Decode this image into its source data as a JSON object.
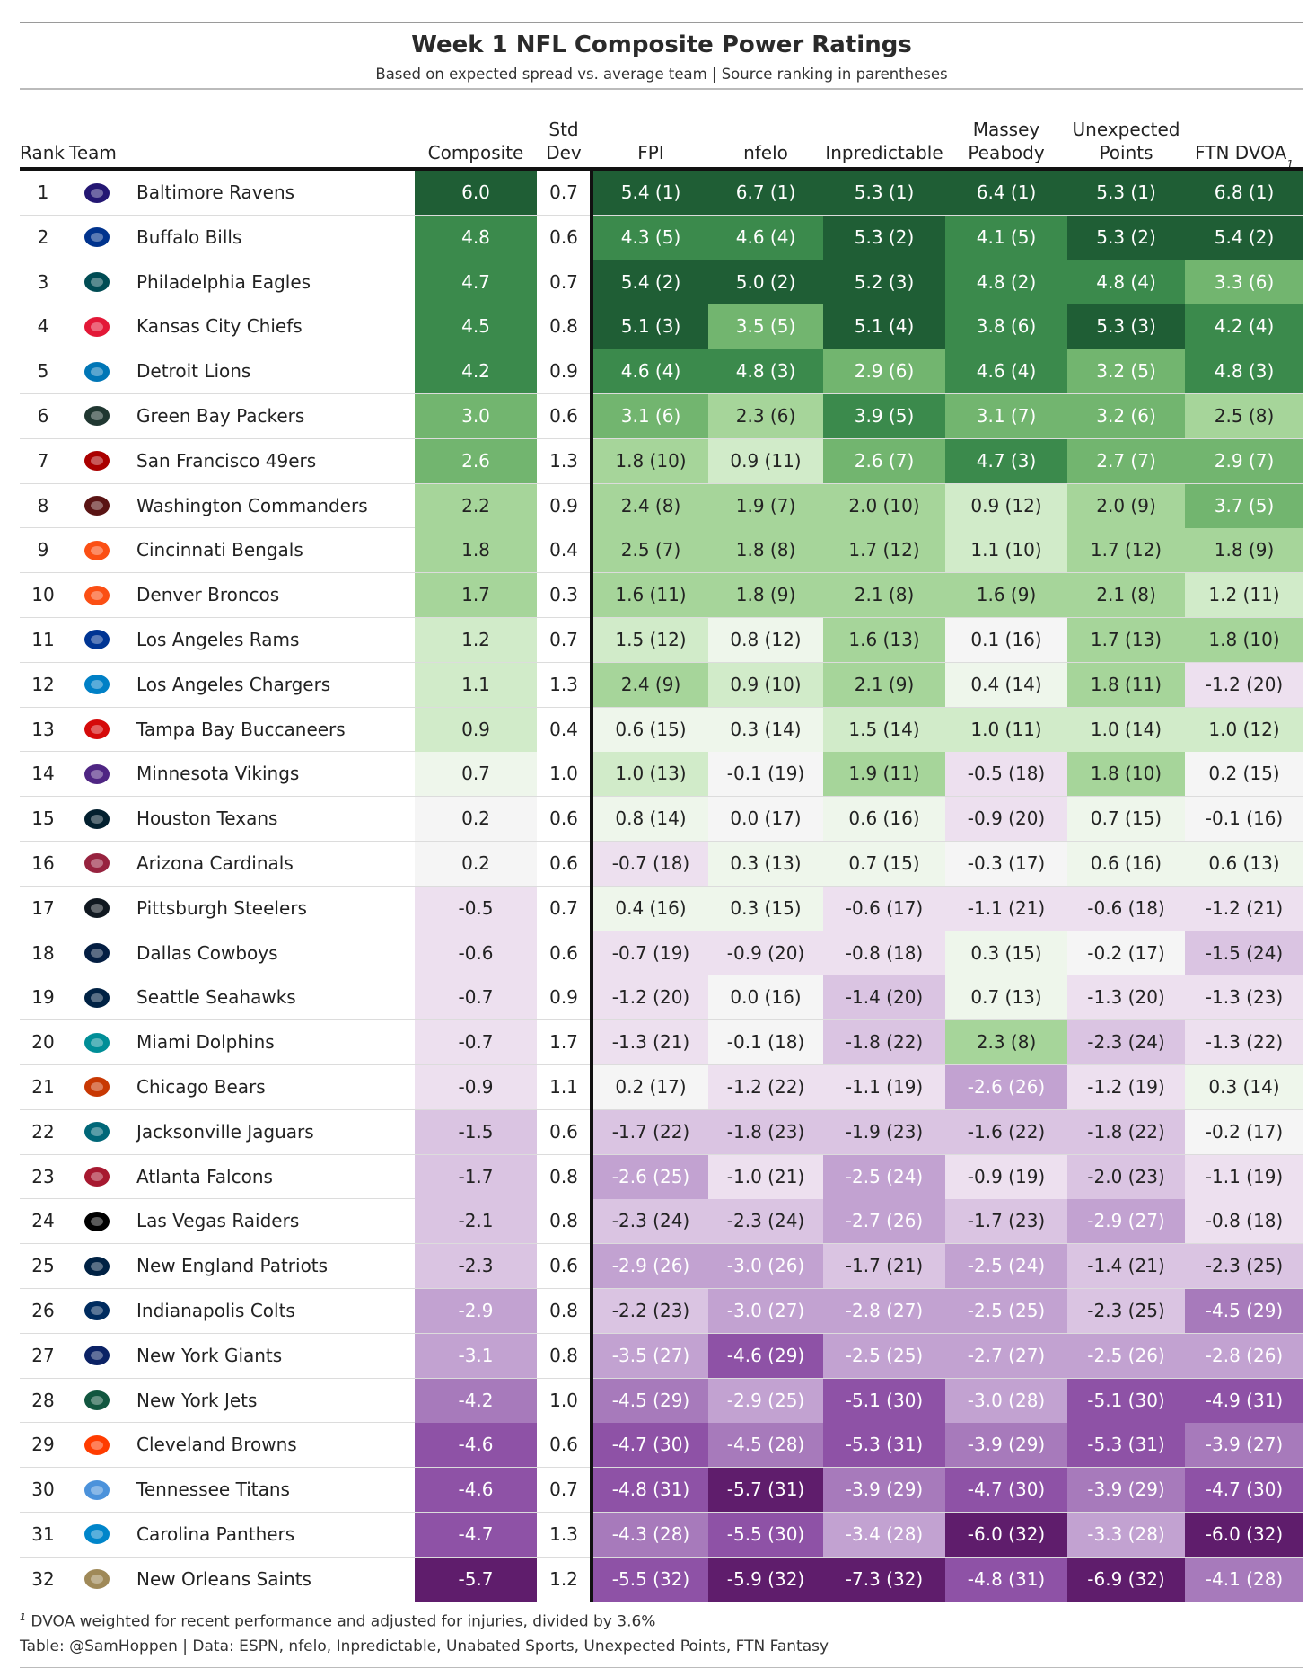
{
  "title": "Week 1 NFL Composite Power Ratings",
  "subtitle": "Based on expected spread vs. average team | Source ranking in parentheses",
  "columns": {
    "rank": "Rank",
    "team": "Team",
    "composite": "Composite",
    "std_dev": "Std Dev",
    "fpi": "FPI",
    "nfelo": "nfelo",
    "inpredictable": "Inpredictable",
    "massey_1": "Massey",
    "massey_2": "Peabody",
    "unexpected_1": "Unexpected",
    "unexpected_2": "Points",
    "ftn": "FTN DVOA",
    "ftn_mark": "1"
  },
  "colors": {
    "green_scale": [
      "#1f5e35",
      "#3b8a4c",
      "#72b56f",
      "#a6d59a",
      "#d1ebc9",
      "#eef6eb"
    ],
    "neutral": "#f5f5f5",
    "purple_scale": [
      "#ede0ef",
      "#dac4e2",
      "#c2a2d1",
      "#a77abb",
      "#8e52a6",
      "#5f1d6c"
    ]
  },
  "chart_data": {
    "type": "table",
    "rows": [
      {
        "rank": "1",
        "team": "Baltimore Ravens",
        "logo": "ravens-logo",
        "composite": "6.0",
        "sd": "0.7",
        "fpi": "5.4 (1)",
        "nfelo": "6.7 (1)",
        "inp": "5.3 (1)",
        "massey": "6.4 (1)",
        "unexp": "5.3 (1)",
        "ftn": "6.8 (1)",
        "composite_value": 6.0,
        "sources": [
          5.4,
          6.7,
          5.3,
          6.4,
          5.3,
          6.8
        ]
      },
      {
        "rank": "2",
        "team": "Buffalo Bills",
        "logo": "bills-logo",
        "composite": "4.8",
        "sd": "0.6",
        "fpi": "4.3 (5)",
        "nfelo": "4.6 (4)",
        "inp": "5.3 (2)",
        "massey": "4.1 (5)",
        "unexp": "5.3 (2)",
        "ftn": "5.4 (2)",
        "composite_value": 4.8,
        "sources": [
          4.3,
          4.6,
          5.3,
          4.1,
          5.3,
          5.4
        ]
      },
      {
        "rank": "3",
        "team": "Philadelphia Eagles",
        "logo": "eagles-logo",
        "composite": "4.7",
        "sd": "0.7",
        "fpi": "5.4 (2)",
        "nfelo": "5.0 (2)",
        "inp": "5.2 (3)",
        "massey": "4.8 (2)",
        "unexp": "4.8 (4)",
        "ftn": "3.3 (6)",
        "composite_value": 4.7,
        "sources": [
          5.4,
          5.0,
          5.2,
          4.8,
          4.8,
          3.3
        ]
      },
      {
        "rank": "4",
        "team": "Kansas City Chiefs",
        "logo": "chiefs-logo",
        "composite": "4.5",
        "sd": "0.8",
        "fpi": "5.1 (3)",
        "nfelo": "3.5 (5)",
        "inp": "5.1 (4)",
        "massey": "3.8 (6)",
        "unexp": "5.3 (3)",
        "ftn": "4.2 (4)",
        "composite_value": 4.5,
        "sources": [
          5.1,
          3.5,
          5.1,
          3.8,
          5.3,
          4.2
        ]
      },
      {
        "rank": "5",
        "team": "Detroit Lions",
        "logo": "lions-logo",
        "composite": "4.2",
        "sd": "0.9",
        "fpi": "4.6 (4)",
        "nfelo": "4.8 (3)",
        "inp": "2.9 (6)",
        "massey": "4.6 (4)",
        "unexp": "3.2 (5)",
        "ftn": "4.8 (3)",
        "composite_value": 4.2,
        "sources": [
          4.6,
          4.8,
          2.9,
          4.6,
          3.2,
          4.8
        ]
      },
      {
        "rank": "6",
        "team": "Green Bay Packers",
        "logo": "packers-logo",
        "composite": "3.0",
        "sd": "0.6",
        "fpi": "3.1 (6)",
        "nfelo": "2.3 (6)",
        "inp": "3.9 (5)",
        "massey": "3.1 (7)",
        "unexp": "3.2 (6)",
        "ftn": "2.5 (8)",
        "composite_value": 3.0,
        "sources": [
          3.1,
          2.3,
          3.9,
          3.1,
          3.2,
          2.5
        ]
      },
      {
        "rank": "7",
        "team": "San Francisco 49ers",
        "logo": "49ers-logo",
        "composite": "2.6",
        "sd": "1.3",
        "fpi": "1.8 (10)",
        "nfelo": "0.9 (11)",
        "inp": "2.6 (7)",
        "massey": "4.7 (3)",
        "unexp": "2.7 (7)",
        "ftn": "2.9 (7)",
        "composite_value": 2.6,
        "sources": [
          1.8,
          0.9,
          2.6,
          4.7,
          2.7,
          2.9
        ]
      },
      {
        "rank": "8",
        "team": "Washington Commanders",
        "logo": "commanders-logo",
        "composite": "2.2",
        "sd": "0.9",
        "fpi": "2.4 (8)",
        "nfelo": "1.9 (7)",
        "inp": "2.0 (10)",
        "massey": "0.9 (12)",
        "unexp": "2.0 (9)",
        "ftn": "3.7 (5)",
        "composite_value": 2.2,
        "sources": [
          2.4,
          1.9,
          2.0,
          0.9,
          2.0,
          3.7
        ]
      },
      {
        "rank": "9",
        "team": "Cincinnati Bengals",
        "logo": "bengals-logo",
        "composite": "1.8",
        "sd": "0.4",
        "fpi": "2.5 (7)",
        "nfelo": "1.8 (8)",
        "inp": "1.7 (12)",
        "massey": "1.1 (10)",
        "unexp": "1.7 (12)",
        "ftn": "1.8 (9)",
        "composite_value": 1.8,
        "sources": [
          2.5,
          1.8,
          1.7,
          1.1,
          1.7,
          1.8
        ]
      },
      {
        "rank": "10",
        "team": "Denver Broncos",
        "logo": "broncos-logo",
        "composite": "1.7",
        "sd": "0.3",
        "fpi": "1.6 (11)",
        "nfelo": "1.8 (9)",
        "inp": "2.1 (8)",
        "massey": "1.6 (9)",
        "unexp": "2.1 (8)",
        "ftn": "1.2 (11)",
        "composite_value": 1.7,
        "sources": [
          1.6,
          1.8,
          2.1,
          1.6,
          2.1,
          1.2
        ]
      },
      {
        "rank": "11",
        "team": "Los Angeles Rams",
        "logo": "rams-logo",
        "composite": "1.2",
        "sd": "0.7",
        "fpi": "1.5 (12)",
        "nfelo": "0.8 (12)",
        "inp": "1.6 (13)",
        "massey": "0.1 (16)",
        "unexp": "1.7 (13)",
        "ftn": "1.8 (10)",
        "composite_value": 1.2,
        "sources": [
          1.5,
          0.8,
          1.6,
          0.1,
          1.7,
          1.8
        ]
      },
      {
        "rank": "12",
        "team": "Los Angeles Chargers",
        "logo": "chargers-logo",
        "composite": "1.1",
        "sd": "1.3",
        "fpi": "2.4 (9)",
        "nfelo": "0.9 (10)",
        "inp": "2.1 (9)",
        "massey": "0.4 (14)",
        "unexp": "1.8 (11)",
        "ftn": "-1.2 (20)",
        "composite_value": 1.1,
        "sources": [
          2.4,
          0.9,
          2.1,
          0.4,
          1.8,
          -1.2
        ]
      },
      {
        "rank": "13",
        "team": "Tampa Bay Buccaneers",
        "logo": "buccaneers-logo",
        "composite": "0.9",
        "sd": "0.4",
        "fpi": "0.6 (15)",
        "nfelo": "0.3 (14)",
        "inp": "1.5 (14)",
        "massey": "1.0 (11)",
        "unexp": "1.0 (14)",
        "ftn": "1.0 (12)",
        "composite_value": 0.9,
        "sources": [
          0.6,
          0.3,
          1.5,
          1.0,
          1.0,
          1.0
        ]
      },
      {
        "rank": "14",
        "team": "Minnesota Vikings",
        "logo": "vikings-logo",
        "composite": "0.7",
        "sd": "1.0",
        "fpi": "1.0 (13)",
        "nfelo": "-0.1 (19)",
        "inp": "1.9 (11)",
        "massey": "-0.5 (18)",
        "unexp": "1.8 (10)",
        "ftn": "0.2 (15)",
        "composite_value": 0.7,
        "sources": [
          1.0,
          -0.1,
          1.9,
          -0.5,
          1.8,
          0.2
        ]
      },
      {
        "rank": "15",
        "team": "Houston Texans",
        "logo": "texans-logo",
        "composite": "0.2",
        "sd": "0.6",
        "fpi": "0.8 (14)",
        "nfelo": "0.0 (17)",
        "inp": "0.6 (16)",
        "massey": "-0.9 (20)",
        "unexp": "0.7 (15)",
        "ftn": "-0.1 (16)",
        "composite_value": 0.2,
        "sources": [
          0.8,
          0.0,
          0.6,
          -0.9,
          0.7,
          -0.1
        ]
      },
      {
        "rank": "16",
        "team": "Arizona Cardinals",
        "logo": "cardinals-logo",
        "composite": "0.2",
        "sd": "0.6",
        "fpi": "-0.7 (18)",
        "nfelo": "0.3 (13)",
        "inp": "0.7 (15)",
        "massey": "-0.3 (17)",
        "unexp": "0.6 (16)",
        "ftn": "0.6 (13)",
        "composite_value": 0.2,
        "sources": [
          -0.7,
          0.3,
          0.7,
          -0.3,
          0.6,
          0.6
        ]
      },
      {
        "rank": "17",
        "team": "Pittsburgh Steelers",
        "logo": "steelers-logo",
        "composite": "-0.5",
        "sd": "0.7",
        "fpi": "0.4 (16)",
        "nfelo": "0.3 (15)",
        "inp": "-0.6 (17)",
        "massey": "-1.1 (21)",
        "unexp": "-0.6 (18)",
        "ftn": "-1.2 (21)",
        "composite_value": -0.5,
        "sources": [
          0.4,
          0.3,
          -0.6,
          -1.1,
          -0.6,
          -1.2
        ]
      },
      {
        "rank": "18",
        "team": "Dallas Cowboys",
        "logo": "cowboys-logo",
        "composite": "-0.6",
        "sd": "0.6",
        "fpi": "-0.7 (19)",
        "nfelo": "-0.9 (20)",
        "inp": "-0.8 (18)",
        "massey": "0.3 (15)",
        "unexp": "-0.2 (17)",
        "ftn": "-1.5 (24)",
        "composite_value": -0.6,
        "sources": [
          -0.7,
          -0.9,
          -0.8,
          0.3,
          -0.2,
          -1.5
        ]
      },
      {
        "rank": "19",
        "team": "Seattle Seahawks",
        "logo": "seahawks-logo",
        "composite": "-0.7",
        "sd": "0.9",
        "fpi": "-1.2 (20)",
        "nfelo": "0.0 (16)",
        "inp": "-1.4 (20)",
        "massey": "0.7 (13)",
        "unexp": "-1.3 (20)",
        "ftn": "-1.3 (23)",
        "composite_value": -0.7,
        "sources": [
          -1.2,
          0.0,
          -1.4,
          0.7,
          -1.3,
          -1.3
        ]
      },
      {
        "rank": "20",
        "team": "Miami Dolphins",
        "logo": "dolphins-logo",
        "composite": "-0.7",
        "sd": "1.7",
        "fpi": "-1.3 (21)",
        "nfelo": "-0.1 (18)",
        "inp": "-1.8 (22)",
        "massey": "2.3 (8)",
        "unexp": "-2.3 (24)",
        "ftn": "-1.3 (22)",
        "composite_value": -0.7,
        "sources": [
          -1.3,
          -0.1,
          -1.8,
          2.3,
          -2.3,
          -1.3
        ]
      },
      {
        "rank": "21",
        "team": "Chicago Bears",
        "logo": "bears-logo",
        "composite": "-0.9",
        "sd": "1.1",
        "fpi": "0.2 (17)",
        "nfelo": "-1.2 (22)",
        "inp": "-1.1 (19)",
        "massey": "-2.6 (26)",
        "unexp": "-1.2 (19)",
        "ftn": "0.3 (14)",
        "composite_value": -0.9,
        "sources": [
          0.2,
          -1.2,
          -1.1,
          -2.6,
          -1.2,
          0.3
        ]
      },
      {
        "rank": "22",
        "team": "Jacksonville Jaguars",
        "logo": "jaguars-logo",
        "composite": "-1.5",
        "sd": "0.6",
        "fpi": "-1.7 (22)",
        "nfelo": "-1.8 (23)",
        "inp": "-1.9 (23)",
        "massey": "-1.6 (22)",
        "unexp": "-1.8 (22)",
        "ftn": "-0.2 (17)",
        "composite_value": -1.5,
        "sources": [
          -1.7,
          -1.8,
          -1.9,
          -1.6,
          -1.8,
          -0.2
        ]
      },
      {
        "rank": "23",
        "team": "Atlanta Falcons",
        "logo": "falcons-logo",
        "composite": "-1.7",
        "sd": "0.8",
        "fpi": "-2.6 (25)",
        "nfelo": "-1.0 (21)",
        "inp": "-2.5 (24)",
        "massey": "-0.9 (19)",
        "unexp": "-2.0 (23)",
        "ftn": "-1.1 (19)",
        "composite_value": -1.7,
        "sources": [
          -2.6,
          -1.0,
          -2.5,
          -0.9,
          -2.0,
          -1.1
        ]
      },
      {
        "rank": "24",
        "team": "Las Vegas Raiders",
        "logo": "raiders-logo",
        "composite": "-2.1",
        "sd": "0.8",
        "fpi": "-2.3 (24)",
        "nfelo": "-2.3 (24)",
        "inp": "-2.7 (26)",
        "massey": "-1.7 (23)",
        "unexp": "-2.9 (27)",
        "ftn": "-0.8 (18)",
        "composite_value": -2.1,
        "sources": [
          -2.3,
          -2.3,
          -2.7,
          -1.7,
          -2.9,
          -0.8
        ]
      },
      {
        "rank": "25",
        "team": "New England Patriots",
        "logo": "patriots-logo",
        "composite": "-2.3",
        "sd": "0.6",
        "fpi": "-2.9 (26)",
        "nfelo": "-3.0 (26)",
        "inp": "-1.7 (21)",
        "massey": "-2.5 (24)",
        "unexp": "-1.4 (21)",
        "ftn": "-2.3 (25)",
        "composite_value": -2.3,
        "sources": [
          -2.9,
          -3.0,
          -1.7,
          -2.5,
          -1.4,
          -2.3
        ]
      },
      {
        "rank": "26",
        "team": "Indianapolis Colts",
        "logo": "colts-logo",
        "composite": "-2.9",
        "sd": "0.8",
        "fpi": "-2.2 (23)",
        "nfelo": "-3.0 (27)",
        "inp": "-2.8 (27)",
        "massey": "-2.5 (25)",
        "unexp": "-2.3 (25)",
        "ftn": "-4.5 (29)",
        "composite_value": -2.9,
        "sources": [
          -2.2,
          -3.0,
          -2.8,
          -2.5,
          -2.3,
          -4.5
        ]
      },
      {
        "rank": "27",
        "team": "New York Giants",
        "logo": "giants-logo",
        "composite": "-3.1",
        "sd": "0.8",
        "fpi": "-3.5 (27)",
        "nfelo": "-4.6 (29)",
        "inp": "-2.5 (25)",
        "massey": "-2.7 (27)",
        "unexp": "-2.5 (26)",
        "ftn": "-2.8 (26)",
        "composite_value": -3.1,
        "sources": [
          -3.5,
          -4.6,
          -2.5,
          -2.7,
          -2.5,
          -2.8
        ]
      },
      {
        "rank": "28",
        "team": "New York Jets",
        "logo": "jets-logo",
        "composite": "-4.2",
        "sd": "1.0",
        "fpi": "-4.5 (29)",
        "nfelo": "-2.9 (25)",
        "inp": "-5.1 (30)",
        "massey": "-3.0 (28)",
        "unexp": "-5.1 (30)",
        "ftn": "-4.9 (31)",
        "composite_value": -4.2,
        "sources": [
          -4.5,
          -2.9,
          -5.1,
          -3.0,
          -5.1,
          -4.9
        ]
      },
      {
        "rank": "29",
        "team": "Cleveland Browns",
        "logo": "browns-logo",
        "composite": "-4.6",
        "sd": "0.6",
        "fpi": "-4.7 (30)",
        "nfelo": "-4.5 (28)",
        "inp": "-5.3 (31)",
        "massey": "-3.9 (29)",
        "unexp": "-5.3 (31)",
        "ftn": "-3.9 (27)",
        "composite_value": -4.6,
        "sources": [
          -4.7,
          -4.5,
          -5.3,
          -3.9,
          -5.3,
          -3.9
        ]
      },
      {
        "rank": "30",
        "team": "Tennessee Titans",
        "logo": "titans-logo",
        "composite": "-4.6",
        "sd": "0.7",
        "fpi": "-4.8 (31)",
        "nfelo": "-5.7 (31)",
        "inp": "-3.9 (29)",
        "massey": "-4.7 (30)",
        "unexp": "-3.9 (29)",
        "ftn": "-4.7 (30)",
        "composite_value": -4.6,
        "sources": [
          -4.8,
          -5.7,
          -3.9,
          -4.7,
          -3.9,
          -4.7
        ]
      },
      {
        "rank": "31",
        "team": "Carolina Panthers",
        "logo": "panthers-logo",
        "composite": "-4.7",
        "sd": "1.3",
        "fpi": "-4.3 (28)",
        "nfelo": "-5.5 (30)",
        "inp": "-3.4 (28)",
        "massey": "-6.0 (32)",
        "unexp": "-3.3 (28)",
        "ftn": "-6.0 (32)",
        "composite_value": -4.7,
        "sources": [
          -4.3,
          -5.5,
          -3.4,
          -6.0,
          -3.3,
          -6.0
        ]
      },
      {
        "rank": "32",
        "team": "New Orleans Saints",
        "logo": "saints-logo",
        "composite": "-5.7",
        "sd": "1.2",
        "fpi": "-5.5 (32)",
        "nfelo": "-5.9 (32)",
        "inp": "-7.3 (32)",
        "massey": "-4.8 (31)",
        "unexp": "-6.9 (32)",
        "ftn": "-4.1 (28)",
        "composite_value": -5.7,
        "sources": [
          -5.5,
          -5.9,
          -7.3,
          -4.8,
          -6.9,
          -4.1
        ]
      }
    ]
  },
  "footnote_mark": "1",
  "footnote": "DVOA weighted for recent performance and adjusted for injuries, divided by 3.6%",
  "credit": "Table: @SamHoppen | Data: ESPN, nfelo, Inpredictable, Unabated Sports, Unexpected Points, FTN Fantasy",
  "logo_colors": {
    "ravens-logo": "#241773",
    "bills-logo": "#00338d",
    "eagles-logo": "#004c54",
    "chiefs-logo": "#e31837",
    "lions-logo": "#0076b6",
    "packers-logo": "#203731",
    "49ers-logo": "#aa0000",
    "commanders-logo": "#5a1414",
    "bengals-logo": "#fb4f14",
    "broncos-logo": "#fb4f14",
    "rams-logo": "#003594",
    "chargers-logo": "#0080c6",
    "buccaneers-logo": "#d50a0a",
    "vikings-logo": "#4f2683",
    "texans-logo": "#03202f",
    "cardinals-logo": "#97233f",
    "steelers-logo": "#101820",
    "cowboys-logo": "#041e42",
    "seahawks-logo": "#002244",
    "dolphins-logo": "#008e97",
    "bears-logo": "#c83803",
    "jaguars-logo": "#006778",
    "falcons-logo": "#a71930",
    "raiders-logo": "#000000",
    "patriots-logo": "#002244",
    "colts-logo": "#002c5f",
    "giants-logo": "#0b2265",
    "jets-logo": "#125740",
    "browns-logo": "#ff3c00",
    "titans-logo": "#4b92db",
    "panthers-logo": "#0085ca",
    "saints-logo": "#9f8958"
  }
}
